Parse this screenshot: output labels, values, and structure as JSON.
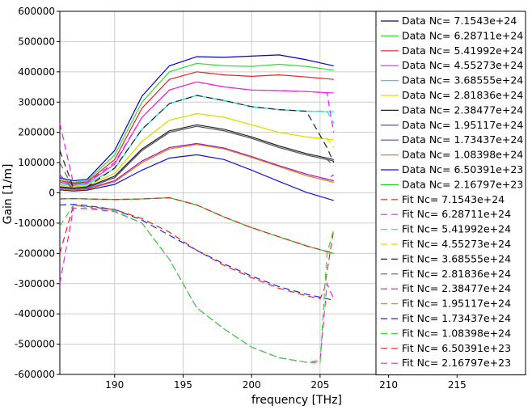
{
  "chart_data": {
    "type": "line",
    "xlabel": "frequency [THz]",
    "ylabel": "Gain [1/m]",
    "xlim": [
      186,
      220
    ],
    "ylim": [
      -600000,
      600000
    ],
    "xticks": [
      190,
      195,
      200,
      205,
      210,
      215
    ],
    "yticks": [
      -600000,
      -500000,
      -400000,
      -300000,
      -200000,
      -100000,
      0,
      100000,
      200000,
      300000,
      400000,
      500000,
      600000
    ],
    "grid": true,
    "legend_position": "top-right",
    "series": [
      {
        "name": "Data Nc= 7.1543e+24",
        "style": "solid",
        "color": "#0000cc",
        "x": [
          186,
          187,
          188,
          190,
          192,
          194,
          196,
          198,
          200,
          202,
          204,
          206
        ],
        "y": [
          50000,
          40000,
          45000,
          140000,
          320000,
          420000,
          450000,
          448000,
          452000,
          456000,
          440000,
          420000
        ]
      },
      {
        "name": "Data Nc= 6.28711e+24",
        "style": "solid",
        "color": "#33dd33",
        "x": [
          186,
          187,
          188,
          190,
          192,
          194,
          196,
          198,
          200,
          202,
          204,
          206
        ],
        "y": [
          45000,
          35000,
          40000,
          125000,
          300000,
          400000,
          428000,
          420000,
          418000,
          425000,
          418000,
          405000
        ]
      },
      {
        "name": "Data Nc= 5.41992e+24",
        "style": "solid",
        "color": "#ee2222",
        "x": [
          186,
          187,
          188,
          190,
          192,
          194,
          196,
          198,
          200,
          202,
          204,
          206
        ],
        "y": [
          40000,
          32000,
          36000,
          110000,
          280000,
          375000,
          400000,
          390000,
          385000,
          390000,
          383000,
          375000
        ]
      },
      {
        "name": "Data Nc= 4.55273e+24",
        "style": "solid",
        "color": "#ee22ee",
        "x": [
          186,
          187,
          188,
          190,
          192,
          194,
          196,
          198,
          200,
          202,
          204,
          206
        ],
        "y": [
          35000,
          28000,
          32000,
          95000,
          250000,
          340000,
          367000,
          350000,
          340000,
          338000,
          335000,
          330000
        ]
      },
      {
        "name": "Data Nc= 3.68555e+24",
        "style": "solid",
        "color": "#22dddd",
        "x": [
          186,
          187,
          188,
          190,
          192,
          194,
          196,
          198,
          200,
          202,
          204,
          206
        ],
        "y": [
          30000,
          24000,
          28000,
          80000,
          210000,
          295000,
          322000,
          305000,
          285000,
          275000,
          270000,
          268000
        ]
      },
      {
        "name": "Data Nc= 2.81836e+24",
        "style": "solid",
        "color": "#dddd00",
        "x": [
          186,
          187,
          188,
          190,
          192,
          194,
          196,
          198,
          200,
          202,
          204,
          206
        ],
        "y": [
          25000,
          20000,
          24000,
          65000,
          170000,
          240000,
          262000,
          250000,
          225000,
          200000,
          185000,
          175000
        ]
      },
      {
        "name": "Data Nc= 2.38477e+24",
        "style": "solid",
        "color": "#222222",
        "x": [
          186,
          187,
          188,
          190,
          192,
          194,
          196,
          198,
          200,
          202,
          204,
          206
        ],
        "y": [
          20000,
          16000,
          20000,
          55000,
          145000,
          205000,
          225000,
          210000,
          185000,
          155000,
          130000,
          110000
        ]
      },
      {
        "name": "Data Nc= 1.95117e+24",
        "style": "solid",
        "color": "#444477",
        "x": [
          186,
          187,
          188,
          190,
          192,
          194,
          196,
          198,
          200,
          202,
          204,
          206
        ],
        "y": [
          18000,
          14000,
          17000,
          50000,
          140000,
          200000,
          220000,
          205000,
          180000,
          150000,
          125000,
          105000
        ]
      },
      {
        "name": "Data Nc= 1.73437e+24",
        "style": "solid",
        "color": "#9922cc",
        "x": [
          186,
          187,
          188,
          190,
          192,
          194,
          196,
          198,
          200,
          202,
          204,
          206
        ],
        "y": [
          15000,
          11000,
          14000,
          40000,
          105000,
          150000,
          163000,
          148000,
          120000,
          90000,
          62000,
          40000
        ]
      },
      {
        "name": "Data Nc= 1.08398e+24",
        "style": "solid",
        "color": "#cc8833",
        "x": [
          186,
          187,
          188,
          190,
          192,
          194,
          196,
          198,
          200,
          202,
          204,
          206
        ],
        "y": [
          13000,
          9000,
          12000,
          36000,
          100000,
          145000,
          160000,
          145000,
          117000,
          87000,
          57000,
          35000
        ]
      },
      {
        "name": "Data Nc= 6.50391e+23",
        "style": "solid",
        "color": "#1111dd",
        "x": [
          186,
          187,
          188,
          190,
          192,
          194,
          196,
          198,
          200,
          202,
          204,
          206
        ],
        "y": [
          10000,
          6000,
          9000,
          28000,
          75000,
          115000,
          126000,
          110000,
          75000,
          38000,
          2000,
          -25000
        ]
      },
      {
        "name": "Data Nc= 2.16797e+23",
        "style": "solid",
        "color": "#22cc22",
        "x": [
          186,
          187,
          188,
          190,
          192,
          194,
          196,
          198,
          200,
          202,
          204,
          206
        ],
        "y": [
          -20000,
          -19000,
          -20000,
          -22000,
          -20000,
          -16000,
          -40000,
          -80000,
          -115000,
          -145000,
          -175000,
          -200000
        ]
      },
      {
        "name": "Fit Nc= 7.1543e+24",
        "style": "dashed",
        "color": "#ee2222",
        "x": [
          186,
          187,
          188,
          190,
          192,
          194,
          196,
          198,
          200,
          202,
          204,
          205,
          205.3,
          206
        ],
        "y": [
          -200000,
          -40000,
          -45000,
          -55000,
          -85000,
          -130000,
          -190000,
          -240000,
          -280000,
          -315000,
          -340000,
          -350000,
          -320000,
          -120000
        ]
      },
      {
        "name": "Fit Nc= 6.28711e+24",
        "style": "dashed",
        "color": "#ee22ee",
        "x": [
          186,
          187,
          188,
          190,
          192,
          194,
          196,
          198,
          200,
          202,
          204,
          205,
          205.5,
          206
        ],
        "y": [
          -300000,
          -50000,
          -52000,
          -62000,
          -100000,
          -220000,
          -380000,
          -450000,
          -510000,
          -545000,
          -560000,
          -555000,
          -300000,
          -350000
        ]
      },
      {
        "name": "Fit Nc= 5.41992e+24",
        "style": "dashed",
        "color": "#22dddd",
        "x": [
          186,
          187,
          188,
          190,
          192,
          194,
          196,
          198,
          200,
          202,
          204,
          205.5,
          206
        ],
        "y": [
          30000,
          24000,
          28000,
          80000,
          210000,
          295000,
          322000,
          305000,
          285000,
          275000,
          270000,
          270000,
          230000
        ]
      },
      {
        "name": "Fit Nc= 4.55273e+24",
        "style": "dashed",
        "color": "#dddd00",
        "x": [
          186,
          187,
          188,
          190,
          192,
          194,
          196,
          198,
          200,
          202,
          204,
          205.5,
          206
        ],
        "y": [
          25000,
          20000,
          24000,
          65000,
          170000,
          240000,
          262000,
          250000,
          225000,
          200000,
          185000,
          180000,
          150000
        ]
      },
      {
        "name": "Fit Nc= 3.68555e+24",
        "style": "dashed",
        "color": "#222222",
        "x": [
          186,
          187,
          188,
          190,
          192,
          194,
          196,
          198,
          200,
          202,
          204,
          205.5,
          206
        ],
        "y": [
          140000,
          16000,
          20000,
          82000,
          210000,
          295000,
          322000,
          305000,
          285000,
          275000,
          270000,
          150000,
          100000
        ]
      },
      {
        "name": "Fit Nc= 2.81836e+24",
        "style": "dashed",
        "color": "#666666",
        "x": [
          186,
          187,
          188,
          190,
          192,
          194,
          196,
          198,
          200,
          202,
          204,
          205.5,
          206
        ],
        "y": [
          100000,
          14000,
          17000,
          50000,
          140000,
          200000,
          220000,
          205000,
          180000,
          150000,
          125000,
          110000,
          90000
        ]
      },
      {
        "name": "Fit Nc= 2.38477e+24",
        "style": "dashed",
        "color": "#aa22cc",
        "x": [
          186,
          187,
          188,
          190,
          192,
          194,
          196,
          198,
          200,
          202,
          204,
          205.5,
          206
        ],
        "y": [
          60000,
          11000,
          14000,
          40000,
          105000,
          150000,
          163000,
          148000,
          120000,
          90000,
          62000,
          45000,
          60000
        ]
      },
      {
        "name": "Fit Nc= 1.95117e+24",
        "style": "dashed",
        "color": "#ee8800",
        "x": [
          186,
          187,
          188,
          190,
          192,
          194,
          196,
          198,
          200,
          202,
          204,
          206
        ],
        "y": [
          13000,
          9000,
          12000,
          36000,
          100000,
          145000,
          160000,
          145000,
          117000,
          87000,
          57000,
          35000
        ]
      },
      {
        "name": "Fit Nc= 1.73437e+24",
        "style": "dashed",
        "color": "#2222ee",
        "x": [
          186,
          187,
          188,
          190,
          192,
          194,
          196,
          198,
          200,
          202,
          204,
          206
        ],
        "y": [
          -40000,
          -38000,
          -42000,
          -55000,
          -90000,
          -140000,
          -190000,
          -235000,
          -275000,
          -310000,
          -335000,
          -355000
        ]
      },
      {
        "name": "Fit Nc= 1.08398e+24",
        "style": "dashed",
        "color": "#33dd33",
        "x": [
          186,
          187,
          188,
          190,
          192,
          194,
          196,
          198,
          200,
          202,
          204,
          205,
          205.5,
          206
        ],
        "y": [
          -110000,
          -40000,
          -48000,
          -60000,
          -100000,
          -220000,
          -380000,
          -450000,
          -510000,
          -545000,
          -560000,
          -562000,
          -200000,
          -120000
        ]
      },
      {
        "name": "Fit Nc= 6.50391e+23",
        "style": "dashed",
        "color": "#dd2222",
        "x": [
          186,
          187,
          188,
          190,
          192,
          194,
          196,
          198,
          200,
          202,
          204,
          206
        ],
        "y": [
          -20000,
          -19000,
          -20000,
          -22000,
          -20000,
          -16000,
          -40000,
          -80000,
          -115000,
          -145000,
          -175000,
          -200000
        ]
      },
      {
        "name": "Fit Nc= 2.16797e+23",
        "style": "dashed",
        "color": "#ee22ee",
        "x": [
          186,
          187,
          188,
          190,
          192,
          194,
          196,
          198,
          200,
          202,
          204,
          205.5,
          206
        ],
        "y": [
          230000,
          30000,
          35000,
          100000,
          250000,
          340000,
          367000,
          350000,
          340000,
          338000,
          335000,
          330000,
          200000
        ]
      }
    ]
  }
}
